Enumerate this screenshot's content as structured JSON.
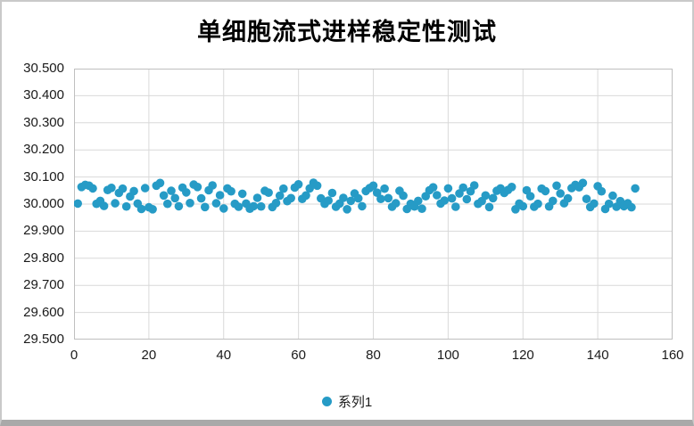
{
  "title": "单细胞流式进样稳定性测试",
  "legend": {
    "series_label": "系列1"
  },
  "colors": {
    "marker": "#269bc6",
    "gridline": "#d9d9d9",
    "plot_border": "#bfbfbf",
    "title_text": "#000000",
    "tick_text": "#1a1a1a",
    "frame_bottom": "#a9a9a9"
  },
  "chart_data": {
    "type": "scatter",
    "title": "单细胞流式进样稳定性测试",
    "xlabel": "",
    "ylabel": "",
    "xlim": [
      0,
      160
    ],
    "ylim": [
      29.5,
      30.5
    ],
    "grid": true,
    "legend_position": "bottom",
    "x_ticks": [
      0,
      20,
      40,
      60,
      80,
      100,
      120,
      140,
      160
    ],
    "y_ticks": [
      29.5,
      29.6,
      29.7,
      29.8,
      29.9,
      30.0,
      30.1,
      30.2,
      30.3,
      30.4,
      30.5
    ],
    "y_tick_labels": [
      "29.500",
      "29.600",
      "29.700",
      "29.800",
      "29.900",
      "30.000",
      "30.100",
      "30.200",
      "30.300",
      "30.400",
      "30.500"
    ],
    "series": [
      {
        "name": "系列1",
        "x": [
          1,
          2,
          3,
          4,
          5,
          6,
          7,
          8,
          9,
          10,
          11,
          12,
          13,
          14,
          15,
          16,
          17,
          18,
          19,
          20,
          21,
          22,
          23,
          24,
          25,
          26,
          27,
          28,
          29,
          30,
          31,
          32,
          33,
          34,
          35,
          36,
          37,
          38,
          39,
          40,
          41,
          42,
          43,
          44,
          45,
          46,
          47,
          48,
          49,
          50,
          51,
          52,
          53,
          54,
          55,
          56,
          57,
          58,
          59,
          60,
          61,
          62,
          63,
          64,
          65,
          66,
          67,
          68,
          69,
          70,
          71,
          72,
          73,
          74,
          75,
          76,
          77,
          78,
          79,
          80,
          81,
          82,
          83,
          84,
          85,
          86,
          87,
          88,
          89,
          90,
          91,
          92,
          93,
          94,
          95,
          96,
          97,
          98,
          99,
          100,
          101,
          102,
          103,
          104,
          105,
          106,
          107,
          108,
          109,
          110,
          111,
          112,
          113,
          114,
          115,
          116,
          117,
          118,
          119,
          120,
          121,
          122,
          123,
          124,
          125,
          126,
          127,
          128,
          129,
          130,
          131,
          132,
          133,
          134,
          135,
          136,
          137,
          138,
          139,
          140,
          141,
          142,
          143,
          144,
          145,
          146,
          147,
          148,
          149,
          150
        ],
        "y": [
          30.002,
          30.063,
          30.071,
          30.068,
          30.058,
          30.001,
          30.012,
          29.993,
          30.052,
          30.06,
          30.003,
          30.041,
          30.057,
          29.991,
          30.028,
          30.048,
          30.002,
          29.982,
          30.059,
          29.988,
          29.981,
          30.068,
          30.078,
          30.032,
          30.001,
          30.049,
          30.022,
          29.992,
          30.061,
          30.043,
          30.004,
          30.072,
          30.063,
          30.021,
          29.989,
          30.051,
          30.069,
          30.003,
          30.033,
          29.984,
          30.058,
          30.047,
          30.001,
          29.99,
          30.038,
          30.002,
          29.983,
          29.992,
          30.023,
          29.991,
          30.049,
          30.042,
          29.989,
          30.004,
          30.031,
          30.057,
          30.011,
          30.022,
          30.061,
          30.073,
          30.019,
          30.032,
          30.058,
          30.079,
          30.068,
          30.021,
          30.001,
          30.013,
          30.041,
          29.99,
          30.002,
          30.023,
          29.981,
          30.012,
          30.039,
          30.021,
          29.992,
          30.048,
          30.059,
          30.068,
          30.042,
          30.019,
          30.057,
          30.022,
          29.99,
          30.003,
          30.049,
          30.031,
          29.982,
          30.001,
          29.991,
          30.012,
          29.983,
          30.029,
          30.051,
          30.062,
          30.033,
          30.002,
          30.013,
          30.058,
          30.021,
          29.99,
          30.039,
          30.061,
          30.018,
          30.047,
          30.069,
          30.001,
          30.011,
          30.032,
          29.989,
          30.022,
          30.049,
          30.058,
          30.041,
          30.052,
          30.063,
          29.981,
          30.002,
          29.992,
          30.051,
          30.029,
          29.99,
          30.001,
          30.057,
          30.048,
          29.991,
          30.012,
          30.068,
          30.039,
          30.003,
          30.021,
          30.059,
          30.071,
          30.062,
          30.078,
          30.019,
          29.989,
          30.002,
          30.066,
          30.047,
          29.982,
          30.001,
          30.031,
          29.99,
          30.011,
          29.992,
          30.003,
          29.988,
          30.058
        ]
      }
    ]
  }
}
